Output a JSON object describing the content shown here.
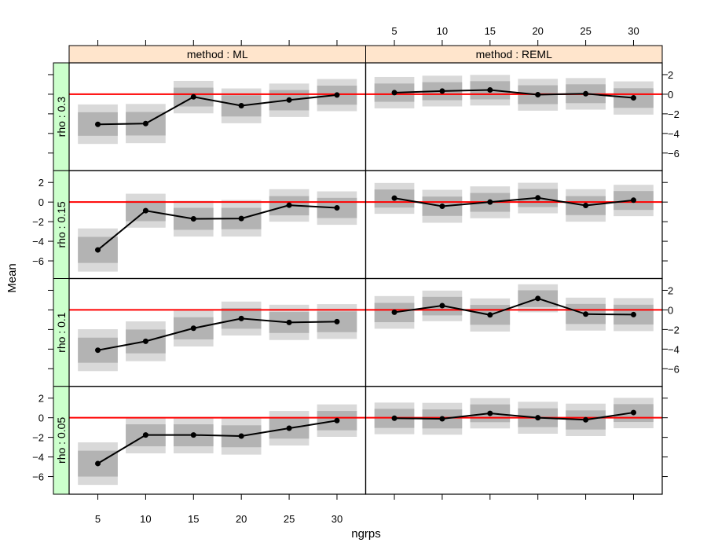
{
  "chart_data": {
    "type": "line",
    "xlabel": "ngrps",
    "ylabel": "Mean",
    "x": [
      5,
      10,
      15,
      20,
      25,
      30
    ],
    "xlim": [
      2,
      33
    ],
    "ylim": [
      -7.8,
      3.2
    ],
    "y_ticks": [
      2,
      0,
      -2,
      -4,
      -6
    ],
    "y_tick_labels": [
      "2",
      "0",
      "−2",
      "−4",
      "−6"
    ],
    "x_tick_labels": [
      "5",
      "10",
      "15",
      "20",
      "25",
      "30"
    ],
    "reference_line": {
      "y": 0,
      "color": "#ff0000"
    },
    "colors": {
      "inner_band": "#b3b3b3",
      "outer_band": "#d9d9d9",
      "line": "#000000",
      "method_strip": "#ffe5cc",
      "rho_strip": "#ccffcc"
    },
    "columns": [
      "method : ML",
      "method : REML"
    ],
    "rows": [
      "rho : 0.3",
      "rho : 0.15",
      "rho : 0.1",
      "rho : 0.05"
    ],
    "panels": [
      {
        "row": 0,
        "col": 0,
        "mean": [
          -3.07,
          -2.99,
          -0.27,
          -1.17,
          -0.59,
          -0.08
        ],
        "inner": [
          [
            -4.24,
            -1.84
          ],
          [
            -4.21,
            -1.81
          ],
          [
            -1.25,
            0.67
          ],
          [
            -2.27,
            -0.11
          ],
          [
            -1.65,
            0.43
          ],
          [
            -1.07,
            0.88
          ]
        ],
        "outer": [
          [
            -5.07,
            -1.04
          ],
          [
            -4.99,
            -0.99
          ],
          [
            -1.95,
            1.36
          ],
          [
            -2.96,
            0.59
          ],
          [
            -2.32,
            1.09
          ],
          [
            -1.73,
            1.55
          ]
        ]
      },
      {
        "row": 0,
        "col": 1,
        "mean": [
          0.16,
          0.32,
          0.43,
          -0.05,
          0.05,
          -0.37
        ],
        "inner": [
          [
            -0.77,
            1.09
          ],
          [
            -0.61,
            1.23
          ],
          [
            -0.53,
            1.33
          ],
          [
            -1.01,
            0.91
          ],
          [
            -0.91,
            1.01
          ],
          [
            -1.39,
            0.61
          ]
        ],
        "outer": [
          [
            -1.44,
            1.76
          ],
          [
            -1.25,
            1.89
          ],
          [
            -1.15,
            1.97
          ],
          [
            -1.68,
            1.57
          ],
          [
            -1.57,
            1.65
          ],
          [
            -2.08,
            1.31
          ]
        ]
      },
      {
        "row": 1,
        "col": 0,
        "mean": [
          -4.88,
          -0.88,
          -1.71,
          -1.68,
          -0.32,
          -0.59
        ],
        "inner": [
          [
            -6.21,
            -3.55
          ],
          [
            -1.95,
            0.13
          ],
          [
            -2.83,
            -0.59
          ],
          [
            -2.77,
            -0.59
          ],
          [
            -1.36,
            0.61
          ],
          [
            -1.63,
            0.43
          ]
        ],
        "outer": [
          [
            -7.09,
            -2.69
          ],
          [
            -2.61,
            0.85
          ],
          [
            -3.52,
            0.13
          ],
          [
            -3.52,
            0.21
          ],
          [
            -2.0,
            1.31
          ],
          [
            -2.32,
            1.09
          ]
        ]
      },
      {
        "row": 1,
        "col": 1,
        "mean": [
          0.4,
          -0.43,
          0.0,
          0.43,
          -0.35,
          0.19
        ],
        "inner": [
          [
            -0.56,
            1.28
          ],
          [
            -1.41,
            0.56
          ],
          [
            -0.99,
            0.93
          ],
          [
            -0.51,
            1.33
          ],
          [
            -1.33,
            0.61
          ],
          [
            -0.8,
            1.12
          ]
        ],
        "outer": [
          [
            -1.2,
            1.95
          ],
          [
            -2.11,
            1.25
          ],
          [
            -1.65,
            1.6
          ],
          [
            -1.15,
            1.97
          ],
          [
            -2.0,
            1.31
          ],
          [
            -1.44,
            1.76
          ]
        ]
      },
      {
        "row": 2,
        "col": 0,
        "mean": [
          -4.11,
          -3.2,
          -1.87,
          -0.88,
          -1.28,
          -1.2
        ],
        "inner": [
          [
            -5.39,
            -2.83
          ],
          [
            -4.43,
            -2.0
          ],
          [
            -3.01,
            -0.75
          ],
          [
            -1.92,
            0.19
          ],
          [
            -2.35,
            -0.21
          ],
          [
            -2.27,
            -0.16
          ]
        ],
        "outer": [
          [
            -6.24,
            -1.97
          ],
          [
            -5.23,
            -1.17
          ],
          [
            -3.73,
            -0.08
          ],
          [
            -2.61,
            0.85
          ],
          [
            -3.07,
            0.53
          ],
          [
            -2.96,
            0.59
          ]
        ]
      },
      {
        "row": 2,
        "col": 1,
        "mean": [
          -0.24,
          0.43,
          -0.51,
          1.17,
          -0.43,
          -0.48
        ],
        "inner": [
          [
            -1.25,
            0.72
          ],
          [
            -0.56,
            1.33
          ],
          [
            -1.52,
            0.51
          ],
          [
            0.29,
            2.0
          ],
          [
            -1.44,
            0.61
          ],
          [
            -1.49,
            0.53
          ]
        ],
        "outer": [
          [
            -1.92,
            1.41
          ],
          [
            -1.15,
            1.97
          ],
          [
            -2.21,
            1.17
          ],
          [
            -0.24,
            2.61
          ],
          [
            -2.11,
            1.25
          ],
          [
            -2.16,
            1.2
          ]
        ]
      },
      {
        "row": 3,
        "col": 0,
        "mean": [
          -4.67,
          -1.76,
          -1.76,
          -1.87,
          -1.07,
          -0.29
        ],
        "inner": [
          [
            -6.0,
            -3.36
          ],
          [
            -2.91,
            -0.67
          ],
          [
            -2.91,
            -0.67
          ],
          [
            -3.01,
            -0.77
          ],
          [
            -2.13,
            0.0
          ],
          [
            -1.28,
            0.69
          ]
        ],
        "outer": [
          [
            -6.85,
            -2.51
          ],
          [
            -3.63,
            0.05
          ],
          [
            -3.63,
            0.05
          ],
          [
            -3.76,
            -0.05
          ],
          [
            -2.83,
            0.69
          ],
          [
            -1.95,
            1.36
          ]
        ]
      },
      {
        "row": 3,
        "col": 1,
        "mean": [
          -0.05,
          -0.11,
          0.45,
          0.0,
          -0.21,
          0.53
        ],
        "inner": [
          [
            -1.04,
            0.91
          ],
          [
            -1.09,
            0.85
          ],
          [
            -0.45,
            1.36
          ],
          [
            -0.96,
            0.96
          ],
          [
            -1.2,
            0.75
          ],
          [
            -0.43,
            1.39
          ]
        ],
        "outer": [
          [
            -1.68,
            1.55
          ],
          [
            -1.73,
            1.52
          ],
          [
            -1.09,
            2.0
          ],
          [
            -1.63,
            1.63
          ],
          [
            -1.87,
            1.44
          ],
          [
            -1.07,
            2.03
          ]
        ]
      }
    ]
  }
}
